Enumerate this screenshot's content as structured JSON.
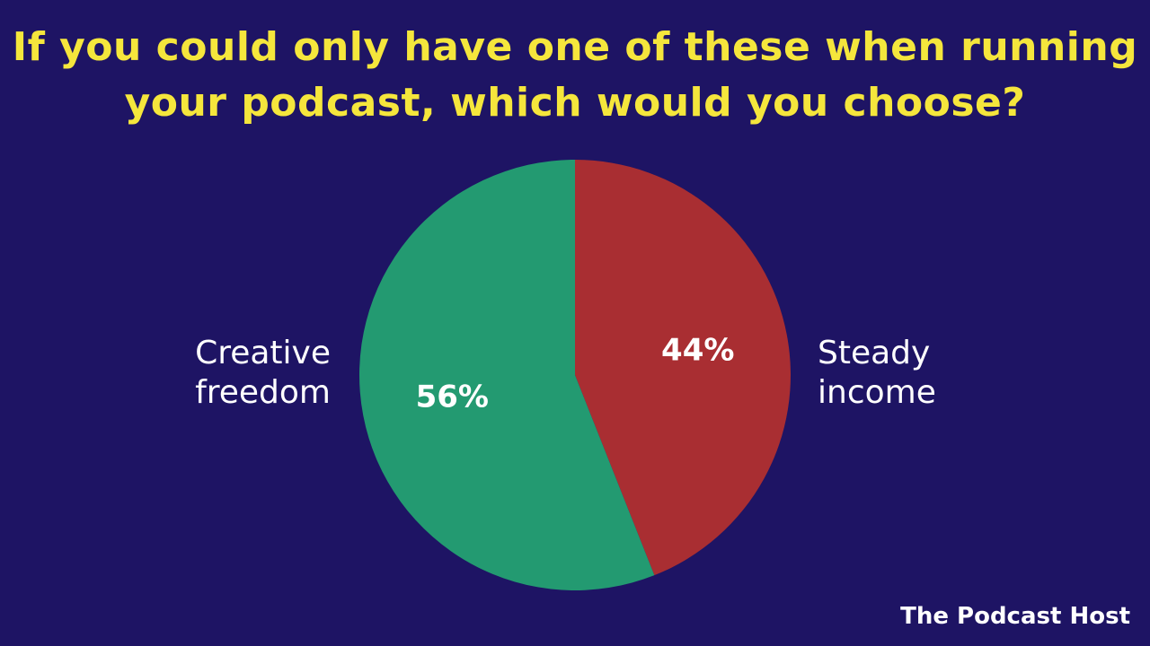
{
  "title_lines": [
    "If you could only have one of these when running",
    "your podcast, which would you choose?"
  ],
  "colors": {
    "background": "#1e1464",
    "title": "#f5e63c",
    "text": "#ffffff"
  },
  "chart_data": {
    "type": "pie",
    "title": "If you could only have one of these when running your podcast, which would you choose?",
    "slices": [
      {
        "label_lines": [
          "Steady",
          "income"
        ],
        "value": 44,
        "value_label": "44%",
        "color": "#a92e32"
      },
      {
        "label_lines": [
          "Creative",
          "freedom"
        ],
        "value": 56,
        "value_label": "56%",
        "color": "#239a71"
      }
    ],
    "start_angle": "12 o'clock",
    "direction": "clockwise",
    "legend": "none"
  },
  "brand": "The Podcast Host"
}
